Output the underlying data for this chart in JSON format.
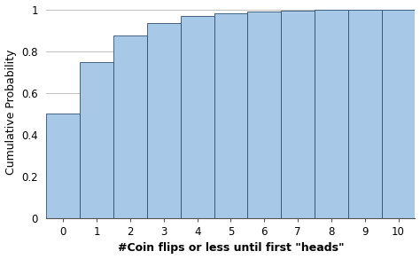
{
  "title": "",
  "xlabel": "#Coin flips or less until first \"heads\"",
  "ylabel": "Cumulative Probability",
  "x_values": [
    0,
    1,
    2,
    3,
    4,
    5,
    6,
    7,
    8,
    9,
    10
  ],
  "cdf_values": [
    0.5,
    0.75,
    0.875,
    0.9375,
    0.96875,
    0.984375,
    0.9921875,
    0.99609375,
    0.998046875,
    0.9990234375,
    0.99951171875
  ],
  "bar_color": "#a8c8e8",
  "bar_edge_color": "#2f4f6f",
  "ylim": [
    0,
    1.02
  ],
  "yticks": [
    0,
    0.2,
    0.4,
    0.6,
    0.8,
    1.0
  ],
  "background_color": "#ffffff",
  "grid_color": "#c0c0c0",
  "ylabel_fontsize": 9,
  "xlabel_fontsize": 9,
  "tick_fontsize": 8.5,
  "xlabel_bold": true
}
